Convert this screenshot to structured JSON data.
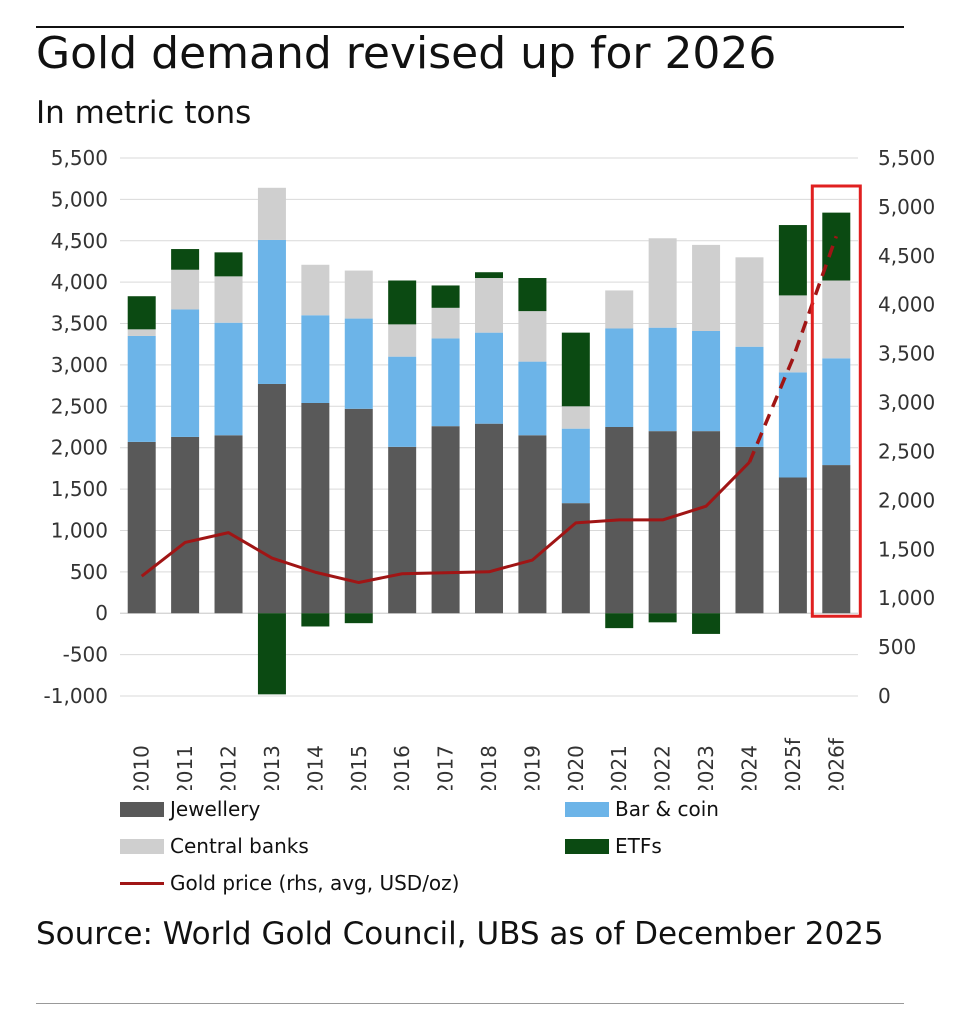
{
  "title": "Gold demand revised up for 2026",
  "subtitle": "In metric tons",
  "source": "Source: World Gold Council, UBS as of December 2025",
  "legend": {
    "jewellery": "Jewellery",
    "bar_coin": "Bar & coin",
    "central_banks": "Central banks",
    "etfs": "ETFs",
    "gold_price": "Gold price (rhs, avg, USD/oz)"
  },
  "colors": {
    "jewellery": "#595959",
    "bar_coin": "#6cb4e8",
    "central_banks": "#cfcfcf",
    "etfs": "#0b4a12",
    "gold_price": "#a01515",
    "highlight": "#e02020"
  },
  "chart_data": {
    "type": "bar",
    "stacked": true,
    "categories": [
      "2010",
      "2011",
      "2012",
      "2013",
      "2014",
      "2015",
      "2016",
      "2017",
      "2018",
      "2019",
      "2020",
      "2021",
      "2022",
      "2023",
      "2024",
      "2025f",
      "2026f"
    ],
    "series": [
      {
        "name": "Jewellery",
        "values": [
          2070,
          2130,
          2150,
          2770,
          2540,
          2470,
          2010,
          2260,
          2290,
          2150,
          1330,
          2250,
          2200,
          2200,
          2010,
          1640,
          1790
        ]
      },
      {
        "name": "Bar & coin",
        "values": [
          1280,
          1540,
          1360,
          1740,
          1060,
          1090,
          1090,
          1060,
          1100,
          890,
          900,
          1190,
          1250,
          1210,
          1210,
          1270,
          1290
        ]
      },
      {
        "name": "Central banks",
        "values": [
          80,
          480,
          560,
          630,
          610,
          580,
          390,
          370,
          660,
          610,
          270,
          460,
          1080,
          1040,
          1080,
          930,
          940
        ]
      },
      {
        "name": "ETFs",
        "values": [
          400,
          250,
          290,
          -980,
          -160,
          -120,
          530,
          270,
          70,
          400,
          890,
          -180,
          -110,
          -250,
          0,
          850,
          820
        ]
      }
    ],
    "line_series": {
      "name": "Gold price (rhs, avg, USD/oz)",
      "axis": "right",
      "values": [
        1225,
        1570,
        1670,
        1410,
        1265,
        1160,
        1250,
        1260,
        1270,
        1390,
        1770,
        1800,
        1800,
        1940,
        2390,
        3450,
        4700
      ],
      "forecast_from_index": 14
    },
    "ylim": [
      -1000,
      5500
    ],
    "yticks": [
      -1000,
      -500,
      0,
      500,
      1000,
      1500,
      2000,
      2500,
      3000,
      3500,
      4000,
      4500,
      5000,
      5500
    ],
    "ytick_labels": [
      "-1,000",
      "-500",
      "0",
      "500",
      "1,000",
      "1,500",
      "2,000",
      "2,500",
      "3,000",
      "3,500",
      "4,000",
      "4,500",
      "5,000",
      "5,500"
    ],
    "y2lim": [
      0,
      5500
    ],
    "y2ticks": [
      0,
      500,
      1000,
      1500,
      2000,
      2500,
      3000,
      3500,
      4000,
      4500,
      5000,
      5500
    ],
    "y2tick_labels": [
      "0",
      "500",
      "1,000",
      "1,500",
      "2,000",
      "2,500",
      "3,000",
      "3,500",
      "4,000",
      "4,500",
      "5,000",
      "5,500"
    ],
    "grid": true,
    "highlight_category": "2026f",
    "legend_position": "bottom"
  }
}
